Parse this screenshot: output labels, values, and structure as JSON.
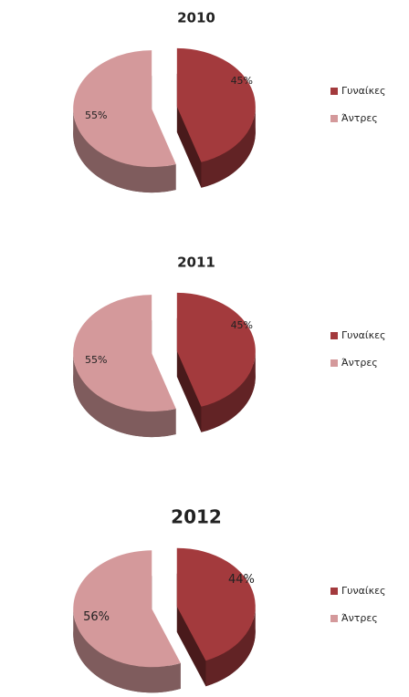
{
  "chart_data": [
    {
      "type": "pie",
      "title": "2010",
      "categories": [
        "Γυναίκες",
        "Άντρες"
      ],
      "values": [
        45,
        55
      ],
      "value_labels": [
        "45%",
        "55%"
      ],
      "colors": [
        "#a33a3d",
        "#d4999b"
      ],
      "legend": "right"
    },
    {
      "type": "pie",
      "title": "2011",
      "categories": [
        "Γυναίκες",
        "Άντρες"
      ],
      "values": [
        45,
        55
      ],
      "value_labels": [
        "45%",
        "55%"
      ],
      "colors": [
        "#a33a3d",
        "#d4999b"
      ],
      "legend": "right"
    },
    {
      "type": "pie",
      "title": "2012",
      "categories": [
        "Γυναίκες",
        "Άντρες"
      ],
      "values": [
        44,
        56
      ],
      "value_labels": [
        "44%",
        "56%"
      ],
      "colors": [
        "#a33a3d",
        "#d4999b"
      ],
      "legend": "right"
    }
  ]
}
